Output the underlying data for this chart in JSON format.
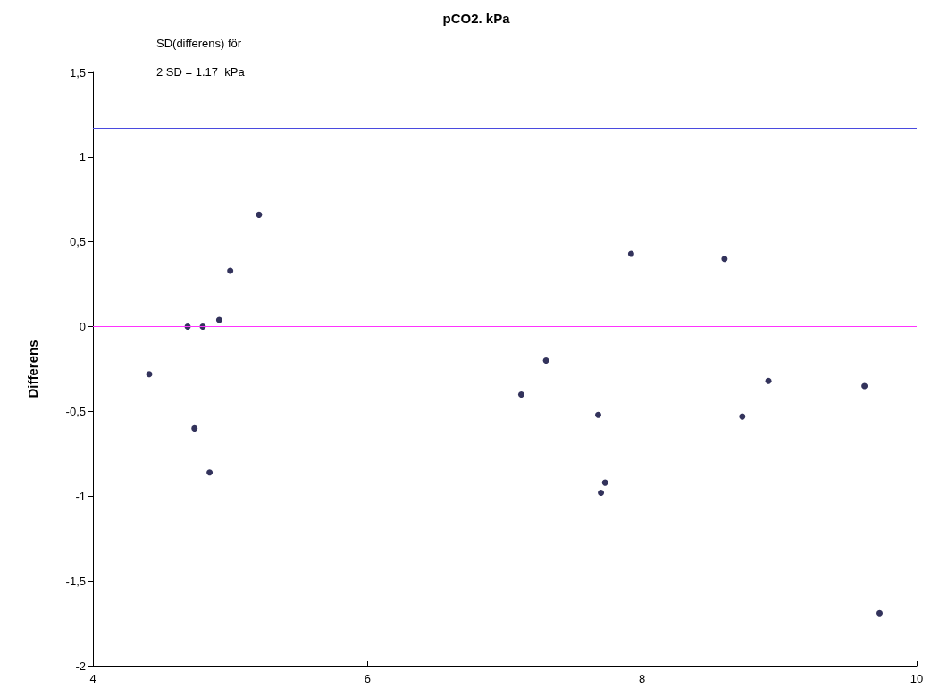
{
  "chart_data": {
    "type": "scatter",
    "title": "pCO2. kPa",
    "ylabel": "Differens",
    "annotations": [
      "SD(differens) för",
      "2 SD = 1.17  kPa"
    ],
    "series": [
      {
        "color": "#000033",
        "x": [
          4.41,
          4.69,
          4.74,
          4.8,
          4.85,
          4.92,
          5.0,
          5.21,
          7.12,
          7.3,
          7.68,
          7.7,
          7.73,
          7.92,
          8.6,
          8.73,
          8.92,
          9.62,
          9.73
        ],
        "values": [
          -0.28,
          0.0,
          -0.6,
          0.0,
          -0.86,
          0.04,
          0.33,
          0.66,
          -0.4,
          -0.2,
          -0.52,
          -0.98,
          -0.92,
          0.43,
          0.4,
          -0.53,
          -0.32,
          -0.35,
          -1.69
        ]
      }
    ],
    "ref_lines": [
      {
        "axis": "y",
        "value": 1.17,
        "color": "#4a4adf"
      },
      {
        "axis": "y",
        "value": 0,
        "color": "#ff33ff"
      },
      {
        "axis": "y",
        "value": -1.17,
        "color": "#4a4adf"
      }
    ],
    "xlim": [
      4,
      10
    ],
    "xticks": [
      4,
      6,
      8,
      10
    ],
    "ylim": [
      -2,
      1.5
    ],
    "yticks": [
      -2,
      {
        "value": -1.5,
        "label": "-1,5"
      },
      -1,
      {
        "value": -0.5,
        "label": "-0,5"
      },
      0,
      {
        "value": 0.5,
        "label": "0,5"
      },
      1,
      {
        "value": 1.5,
        "label": "1,5"
      }
    ],
    "grid": false,
    "marker": "circle"
  }
}
